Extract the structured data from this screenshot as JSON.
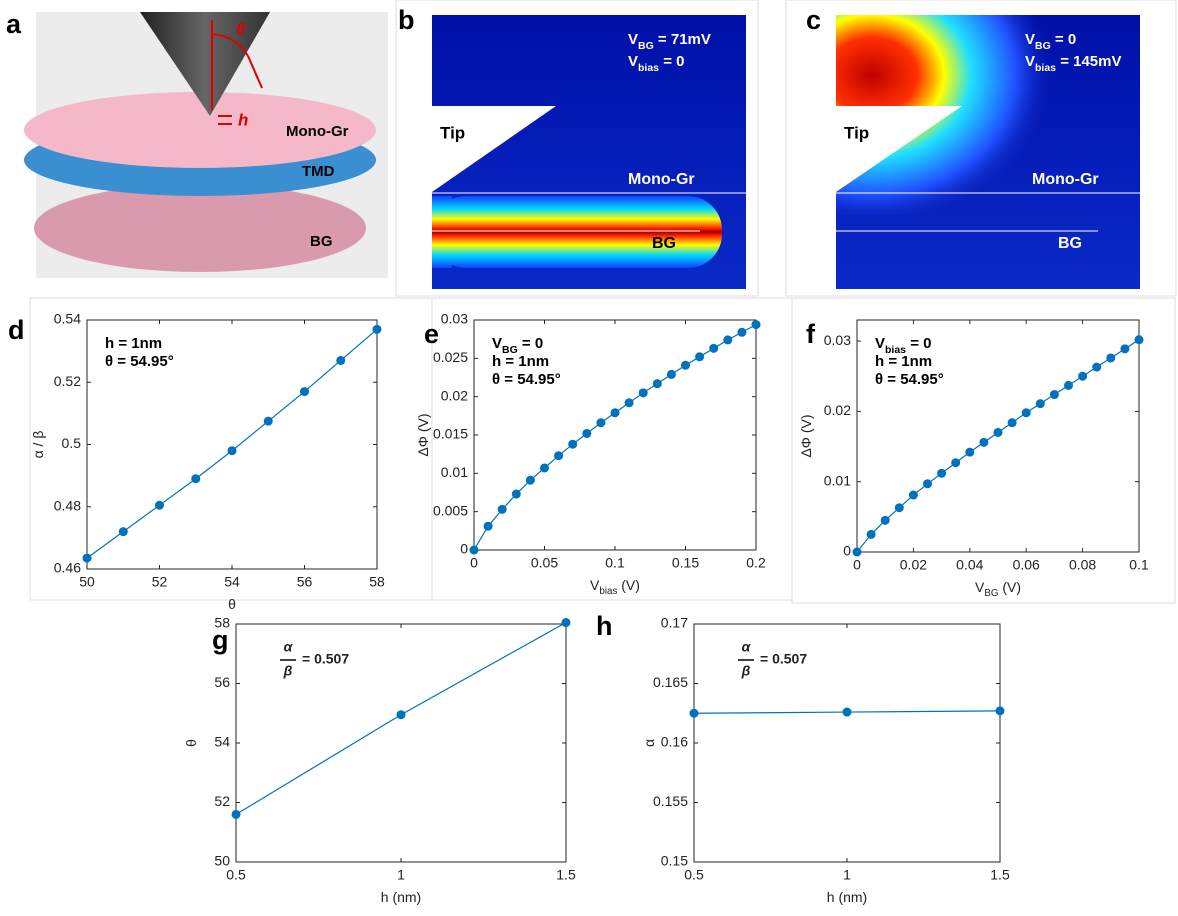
{
  "panel_a": {
    "label": "a",
    "angle": "θ",
    "gap": "h",
    "layers": [
      "Mono-Gr",
      "TMD",
      "BG"
    ]
  },
  "panel_b": {
    "label": "b",
    "annotation": [
      {
        "main": "V",
        "sub": "BG",
        "tail": " = 71mV"
      },
      {
        "main": "V",
        "sub": "bias",
        "tail": " = 0"
      }
    ],
    "tip": "Tip",
    "mono": "Mono-Gr",
    "bg": "BG"
  },
  "panel_c": {
    "label": "c",
    "annotation": [
      {
        "main": "V",
        "sub": "BG",
        "tail": " = 0"
      },
      {
        "main": "V",
        "sub": "bias",
        "tail": " = 145mV"
      }
    ],
    "tip": "Tip",
    "mono": "Mono-Gr",
    "bg": "BG"
  },
  "chart_data": [
    {
      "type": "line",
      "panel_label": "d",
      "color": "#0072bd",
      "annotation": [
        {
          "main": "h = 1nm"
        },
        {
          "main": "θ = 54.95°"
        }
      ],
      "xlabel": {
        "main": "θ"
      },
      "ylabel": {
        "main": "α / β"
      },
      "x": [
        50,
        51,
        52,
        53,
        54,
        55,
        56,
        57,
        58
      ],
      "values": [
        0.4635,
        0.472,
        0.4805,
        0.489,
        0.498,
        0.5075,
        0.517,
        0.527,
        0.537
      ],
      "xlim": [
        50,
        58
      ],
      "xticks": [
        50,
        52,
        54,
        56,
        58
      ],
      "ylim": [
        0.46,
        0.54
      ],
      "yticks": [
        0.46,
        0.48,
        0.5,
        0.52,
        0.54
      ]
    },
    {
      "type": "line",
      "panel_label": "e",
      "color": "#0072bd",
      "annotation": [
        {
          "main": "V",
          "sub": "BG",
          "tail": " = 0"
        },
        {
          "main": "h = 1nm"
        },
        {
          "main": "θ = 54.95°"
        }
      ],
      "xlabel": {
        "main": "V",
        "sub": "bias",
        "tail": " (V)"
      },
      "ylabel": {
        "main": "ΔΦ (V)"
      },
      "x": [
        0,
        0.01,
        0.02,
        0.03,
        0.04,
        0.05,
        0.06,
        0.07,
        0.08,
        0.09,
        0.1,
        0.11,
        0.12,
        0.13,
        0.14,
        0.15,
        0.16,
        0.17,
        0.18,
        0.19,
        0.2
      ],
      "values": [
        0,
        0.0031,
        0.0053,
        0.0073,
        0.0091,
        0.0107,
        0.0123,
        0.0138,
        0.0152,
        0.0166,
        0.0179,
        0.0192,
        0.0205,
        0.0217,
        0.0229,
        0.0241,
        0.0252,
        0.0263,
        0.0274,
        0.0284,
        0.0294
      ],
      "xlim": [
        0,
        0.2
      ],
      "xticks": [
        0,
        0.05,
        0.1,
        0.15,
        0.2
      ],
      "ylim": [
        0,
        0.03
      ],
      "yticks": [
        0,
        0.005,
        0.01,
        0.015,
        0.02,
        0.025,
        0.03
      ]
    },
    {
      "type": "line",
      "panel_label": "f",
      "color": "#0072bd",
      "annotation": [
        {
          "main": "V",
          "sub": "bias",
          "tail": " = 0"
        },
        {
          "main": "h = 1nm"
        },
        {
          "main": "θ = 54.95°"
        }
      ],
      "xlabel": {
        "main": "V",
        "sub": "BG",
        "tail": " (V)"
      },
      "ylabel": {
        "main": "ΔΦ (V)"
      },
      "x": [
        0,
        0.005,
        0.01,
        0.015,
        0.02,
        0.025,
        0.03,
        0.035,
        0.04,
        0.045,
        0.05,
        0.055,
        0.06,
        0.065,
        0.07,
        0.075,
        0.08,
        0.085,
        0.09,
        0.095,
        0.1
      ],
      "values": [
        0,
        0.0025,
        0.0045,
        0.0063,
        0.0081,
        0.0097,
        0.0112,
        0.0127,
        0.0142,
        0.0156,
        0.017,
        0.0184,
        0.0198,
        0.0211,
        0.0224,
        0.0237,
        0.025,
        0.0263,
        0.0276,
        0.0289,
        0.0302
      ],
      "xlim": [
        0,
        0.1
      ],
      "xticks": [
        0,
        0.02,
        0.04,
        0.06,
        0.08,
        0.1
      ],
      "ylim": [
        0,
        0.033
      ],
      "yticks": [
        0,
        0.01,
        0.02,
        0.03
      ]
    },
    {
      "type": "line",
      "panel_label": "g",
      "color": "#0072bd",
      "fraction": {
        "num": "α",
        "den": "β",
        "tail": "= 0.507"
      },
      "xlabel": {
        "main": "h (nm)"
      },
      "ylabel": {
        "main": "θ"
      },
      "x": [
        0.5,
        1,
        1.5
      ],
      "values": [
        51.6,
        54.95,
        58.05
      ],
      "xlim": [
        0.5,
        1.5
      ],
      "xticks": [
        0.5,
        1,
        1.5
      ],
      "ylim": [
        50,
        58
      ],
      "yticks": [
        50,
        52,
        54,
        56,
        58
      ]
    },
    {
      "type": "line",
      "panel_label": "h",
      "color": "#0072bd",
      "fraction": {
        "num": "α",
        "den": "β",
        "tail": "= 0.507"
      },
      "xlabel": {
        "main": "h (nm)"
      },
      "ylabel": {
        "main": "α"
      },
      "x": [
        0.5,
        1,
        1.5
      ],
      "values": [
        0.1625,
        0.1626,
        0.1627
      ],
      "xlim": [
        0.5,
        1.5
      ],
      "xticks": [
        0.5,
        1,
        1.5
      ],
      "ylim": [
        0.15,
        0.17
      ],
      "yticks": [
        0.15,
        0.155,
        0.16,
        0.165,
        0.17
      ]
    }
  ]
}
